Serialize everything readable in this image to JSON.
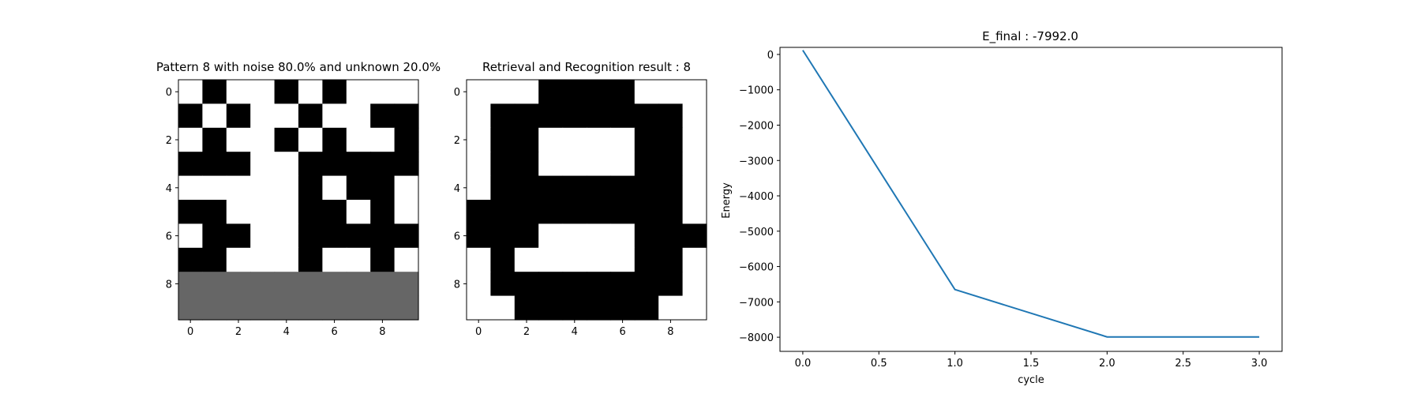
{
  "figure": {
    "panel1_title": "Pattern 8 with noise 80.0% and unknown 20.0%",
    "panel2_title": "Retrieval and Recognition result : 8",
    "panel3_title": "E_final : -7992.0"
  },
  "chart_data": [
    {
      "type": "heatmap",
      "title": "Pattern 8 with noise 80.0% and unknown 20.0%",
      "xticks": [
        "0",
        "2",
        "4",
        "6",
        "8"
      ],
      "yticks": [
        "0",
        "2",
        "4",
        "6",
        "8"
      ],
      "colormap": {
        "-1": "#000000",
        "0": "#666666",
        "1": "#ffffff"
      },
      "grid": [
        [
          1,
          -1,
          1,
          1,
          -1,
          1,
          -1,
          1,
          1,
          1
        ],
        [
          -1,
          1,
          -1,
          1,
          1,
          -1,
          1,
          1,
          -1,
          -1
        ],
        [
          1,
          -1,
          1,
          1,
          -1,
          1,
          -1,
          1,
          1,
          -1
        ],
        [
          -1,
          -1,
          -1,
          1,
          1,
          -1,
          -1,
          -1,
          -1,
          -1
        ],
        [
          1,
          1,
          1,
          1,
          1,
          -1,
          1,
          -1,
          -1,
          1
        ],
        [
          -1,
          -1,
          1,
          1,
          1,
          -1,
          -1,
          1,
          -1,
          1
        ],
        [
          1,
          -1,
          -1,
          1,
          1,
          -1,
          -1,
          -1,
          -1,
          -1
        ],
        [
          -1,
          -1,
          1,
          1,
          1,
          -1,
          1,
          1,
          -1,
          1
        ],
        [
          0,
          0,
          0,
          0,
          0,
          0,
          0,
          0,
          0,
          0
        ],
        [
          0,
          0,
          0,
          0,
          0,
          0,
          0,
          0,
          0,
          0
        ]
      ]
    },
    {
      "type": "heatmap",
      "title": "Retrieval and Recognition result : 8",
      "xticks": [
        "0",
        "2",
        "4",
        "6",
        "8"
      ],
      "yticks": [
        "0",
        "2",
        "4",
        "6",
        "8"
      ],
      "colormap": {
        "-1": "#000000",
        "1": "#ffffff"
      },
      "grid": [
        [
          1,
          1,
          1,
          -1,
          -1,
          -1,
          -1,
          1,
          1,
          1
        ],
        [
          1,
          -1,
          -1,
          -1,
          -1,
          -1,
          -1,
          -1,
          -1,
          1
        ],
        [
          1,
          -1,
          -1,
          1,
          1,
          1,
          1,
          -1,
          -1,
          1
        ],
        [
          1,
          -1,
          -1,
          1,
          1,
          1,
          1,
          -1,
          -1,
          1
        ],
        [
          1,
          -1,
          -1,
          -1,
          -1,
          -1,
          -1,
          -1,
          -1,
          1
        ],
        [
          -1,
          -1,
          -1,
          -1,
          -1,
          -1,
          -1,
          -1,
          -1,
          1
        ],
        [
          -1,
          -1,
          -1,
          1,
          1,
          1,
          1,
          -1,
          -1,
          -1
        ],
        [
          1,
          -1,
          1,
          1,
          1,
          1,
          1,
          -1,
          -1,
          1
        ],
        [
          1,
          -1,
          -1,
          -1,
          -1,
          -1,
          -1,
          -1,
          -1,
          1
        ],
        [
          1,
          1,
          -1,
          -1,
          -1,
          -1,
          -1,
          -1,
          1,
          1
        ]
      ]
    },
    {
      "type": "line",
      "title": "E_final : -7992.0",
      "xlabel": "cycle",
      "ylabel": "Energy",
      "xlim": [
        -0.15,
        3.15
      ],
      "ylim": [
        -8400,
        200
      ],
      "xticks": [
        0.0,
        0.5,
        1.0,
        1.5,
        2.0,
        2.5,
        3.0
      ],
      "xtick_labels": [
        "0.0",
        "0.5",
        "1.0",
        "1.5",
        "2.0",
        "2.5",
        "3.0"
      ],
      "yticks": [
        0,
        -1000,
        -2000,
        -3000,
        -4000,
        -5000,
        -6000,
        -7000,
        -8000
      ],
      "ytick_labels": [
        "0",
        "−1000",
        "−2000",
        "−3000",
        "−4000",
        "−5000",
        "−6000",
        "−7000",
        "−8000"
      ],
      "color": "#1f77b4",
      "grid": false,
      "series": [
        {
          "x": [
            0,
            1,
            2,
            3
          ],
          "y": [
            120,
            -6650,
            -7992,
            -7992
          ]
        }
      ]
    }
  ]
}
